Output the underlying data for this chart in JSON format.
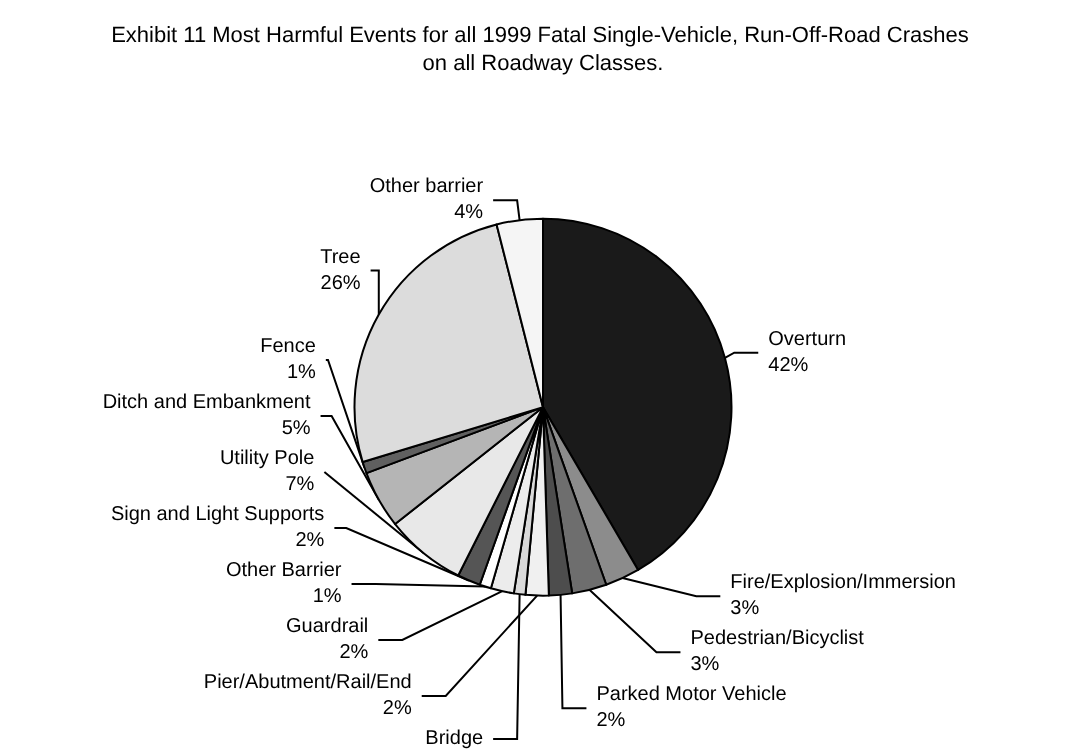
{
  "chart_data": {
    "type": "pie",
    "title": "Exhibit 11 Most Harmful Events for all 1999 Fatal Single-Vehicle, Run-Off-Road Crashes on all Roadway Classes.",
    "categories": [
      "Overturn",
      "Fire/Explosion/Immersion",
      "Pedestrian/Bicyclist",
      "Parked Motor Vehicle",
      "Pier/Abutment/Rail/End",
      "Bridge",
      "Guardrail",
      "Other Barrier",
      "Sign and Light Supports",
      "Utility Pole",
      "Ditch and Embankment",
      "Fence",
      "Tree",
      "Other barrier"
    ],
    "values": [
      42,
      3,
      3,
      2,
      2,
      1,
      2,
      1,
      2,
      7,
      5,
      1,
      26,
      4
    ],
    "value_labels": [
      "42%",
      "3%",
      "3%",
      "2%",
      "2%",
      null,
      "2%",
      "1%",
      "2%",
      "7%",
      "5%",
      "1%",
      "26%",
      "4%"
    ],
    "colors": [
      "#1a1a1a",
      "#8c8c8c",
      "#6e6e6e",
      "#4d4d4d",
      "#f0f0f0",
      "#d9d9d9",
      "#ececec",
      "#ffffff",
      "#555555",
      "#e8e8e8",
      "#b5b5b5",
      "#606060",
      "#dcdcdc",
      "#f5f5f5"
    ]
  }
}
